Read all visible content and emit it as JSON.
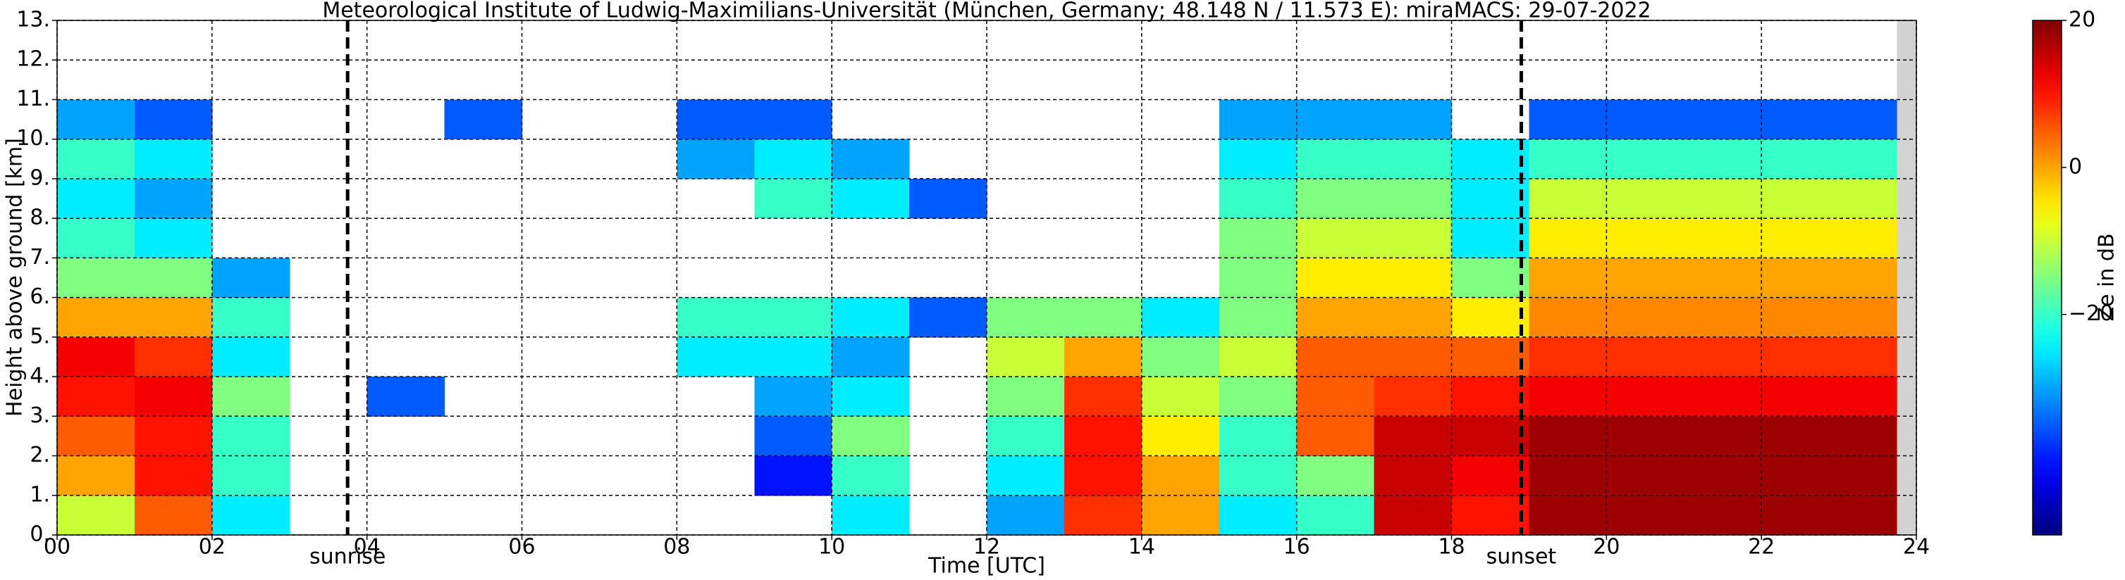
{
  "chart_data": {
    "type": "heatmap",
    "title": "Meteorological Institute of Ludwig-Maximilians-Universität (München, Germany; 48.148 N / 11.573 E):    miraMACS: 29-07-2022",
    "x_label": "Time [UTC]",
    "y_label": "Height above ground [km]",
    "colorbar_label": "Ze in dB",
    "colormap": "jet",
    "grid": true,
    "xlim": [
      0,
      24
    ],
    "ylim": [
      0,
      13
    ],
    "zlim": [
      -50,
      20
    ],
    "xticks": [
      {
        "value": 0,
        "label": "00"
      },
      {
        "value": 2,
        "label": "02"
      },
      {
        "value": 4,
        "label": "04"
      },
      {
        "value": 6,
        "label": "06"
      },
      {
        "value": 8,
        "label": "08"
      },
      {
        "value": 10,
        "label": "10"
      },
      {
        "value": 12,
        "label": "12"
      },
      {
        "value": 14,
        "label": "14"
      },
      {
        "value": 16,
        "label": "16"
      },
      {
        "value": 18,
        "label": "18"
      },
      {
        "value": 20,
        "label": "20"
      },
      {
        "value": 22,
        "label": "22"
      },
      {
        "value": 24,
        "label": "24"
      }
    ],
    "yticks": [
      {
        "value": 0,
        "label": "0."
      },
      {
        "value": 1,
        "label": "1."
      },
      {
        "value": 2,
        "label": "2."
      },
      {
        "value": 3,
        "label": "3."
      },
      {
        "value": 4,
        "label": "4."
      },
      {
        "value": 5,
        "label": "5."
      },
      {
        "value": 6,
        "label": "6."
      },
      {
        "value": 7,
        "label": "7."
      },
      {
        "value": 8,
        "label": "8."
      },
      {
        "value": 9,
        "label": "9."
      },
      {
        "value": 10,
        "label": "10."
      },
      {
        "value": 11,
        "label": "11."
      },
      {
        "value": 12,
        "label": "12."
      },
      {
        "value": 13,
        "label": "13."
      }
    ],
    "zticks": [
      {
        "value": 20,
        "label": "20"
      },
      {
        "value": 0,
        "label": "0"
      },
      {
        "value": -20,
        "label": "−20"
      }
    ],
    "vlines": [
      {
        "x": 3.75,
        "label": "sunrise"
      },
      {
        "x": 18.9,
        "label": "sunset"
      }
    ],
    "no_data_from": 23.75,
    "xbins": [
      0,
      1,
      2,
      3,
      4,
      5,
      6,
      7,
      8,
      9,
      10,
      11,
      12,
      13,
      14,
      15,
      16,
      17,
      18,
      19,
      20,
      21,
      22,
      23,
      24
    ],
    "ybins": [
      0,
      1,
      2,
      3,
      4,
      5,
      6,
      7,
      8,
      9,
      10,
      11,
      12,
      13
    ],
    "values": [
      [
        -10,
        5,
        -25,
        null,
        null,
        null,
        null,
        null,
        null,
        null,
        -25,
        null,
        -30,
        8,
        0,
        -25,
        -20,
        15,
        10,
        18,
        18,
        18,
        18,
        18
      ],
      [
        0,
        10,
        -20,
        null,
        null,
        null,
        null,
        null,
        null,
        -40,
        -20,
        null,
        -25,
        10,
        0,
        -20,
        -15,
        15,
        12,
        18,
        18,
        18,
        18,
        18
      ],
      [
        5,
        10,
        -20,
        null,
        null,
        null,
        null,
        null,
        null,
        -35,
        -15,
        null,
        -20,
        10,
        -5,
        -20,
        5,
        15,
        15,
        18,
        18,
        18,
        18,
        18
      ],
      [
        10,
        12,
        -15,
        null,
        -35,
        null,
        null,
        null,
        null,
        -30,
        -25,
        null,
        -15,
        8,
        -10,
        -15,
        5,
        8,
        10,
        12,
        12,
        12,
        12,
        12
      ],
      [
        12,
        8,
        -25,
        null,
        null,
        null,
        null,
        null,
        -25,
        -25,
        -30,
        null,
        -10,
        0,
        -15,
        -10,
        5,
        5,
        5,
        8,
        8,
        8,
        8,
        8
      ],
      [
        0,
        0,
        -20,
        null,
        null,
        null,
        null,
        null,
        -20,
        -20,
        -25,
        -35,
        -15,
        -15,
        -25,
        -15,
        0,
        0,
        -5,
        2,
        2,
        2,
        2,
        2
      ],
      [
        -15,
        -15,
        -30,
        null,
        null,
        null,
        null,
        null,
        null,
        null,
        null,
        null,
        null,
        null,
        null,
        -15,
        -5,
        -5,
        -15,
        0,
        0,
        0,
        0,
        0
      ],
      [
        -20,
        -25,
        null,
        null,
        null,
        null,
        null,
        null,
        null,
        null,
        null,
        null,
        null,
        null,
        null,
        -15,
        -10,
        -10,
        -25,
        -5,
        -5,
        -5,
        -5,
        -5
      ],
      [
        -25,
        -30,
        null,
        null,
        null,
        null,
        null,
        null,
        null,
        -20,
        -25,
        -35,
        null,
        null,
        null,
        -20,
        -15,
        -15,
        -25,
        -10,
        -10,
        -10,
        -10,
        -10
      ],
      [
        -20,
        -25,
        null,
        null,
        null,
        null,
        null,
        null,
        -30,
        -25,
        -30,
        null,
        null,
        null,
        null,
        -25,
        -20,
        -20,
        -25,
        -20,
        -20,
        -20,
        -20,
        -20
      ],
      [
        -30,
        -35,
        null,
        null,
        null,
        -35,
        null,
        null,
        -35,
        -35,
        null,
        null,
        null,
        null,
        null,
        -30,
        -30,
        -30,
        null,
        -35,
        -35,
        -35,
        -35,
        -35
      ],
      [
        null,
        null,
        null,
        null,
        null,
        null,
        null,
        null,
        null,
        null,
        null,
        null,
        null,
        null,
        null,
        null,
        null,
        null,
        null,
        null,
        null,
        null,
        null,
        null
      ],
      [
        null,
        null,
        null,
        null,
        null,
        null,
        null,
        null,
        null,
        null,
        null,
        null,
        null,
        null,
        null,
        null,
        null,
        null,
        null,
        null,
        null,
        null,
        null,
        null
      ]
    ]
  }
}
